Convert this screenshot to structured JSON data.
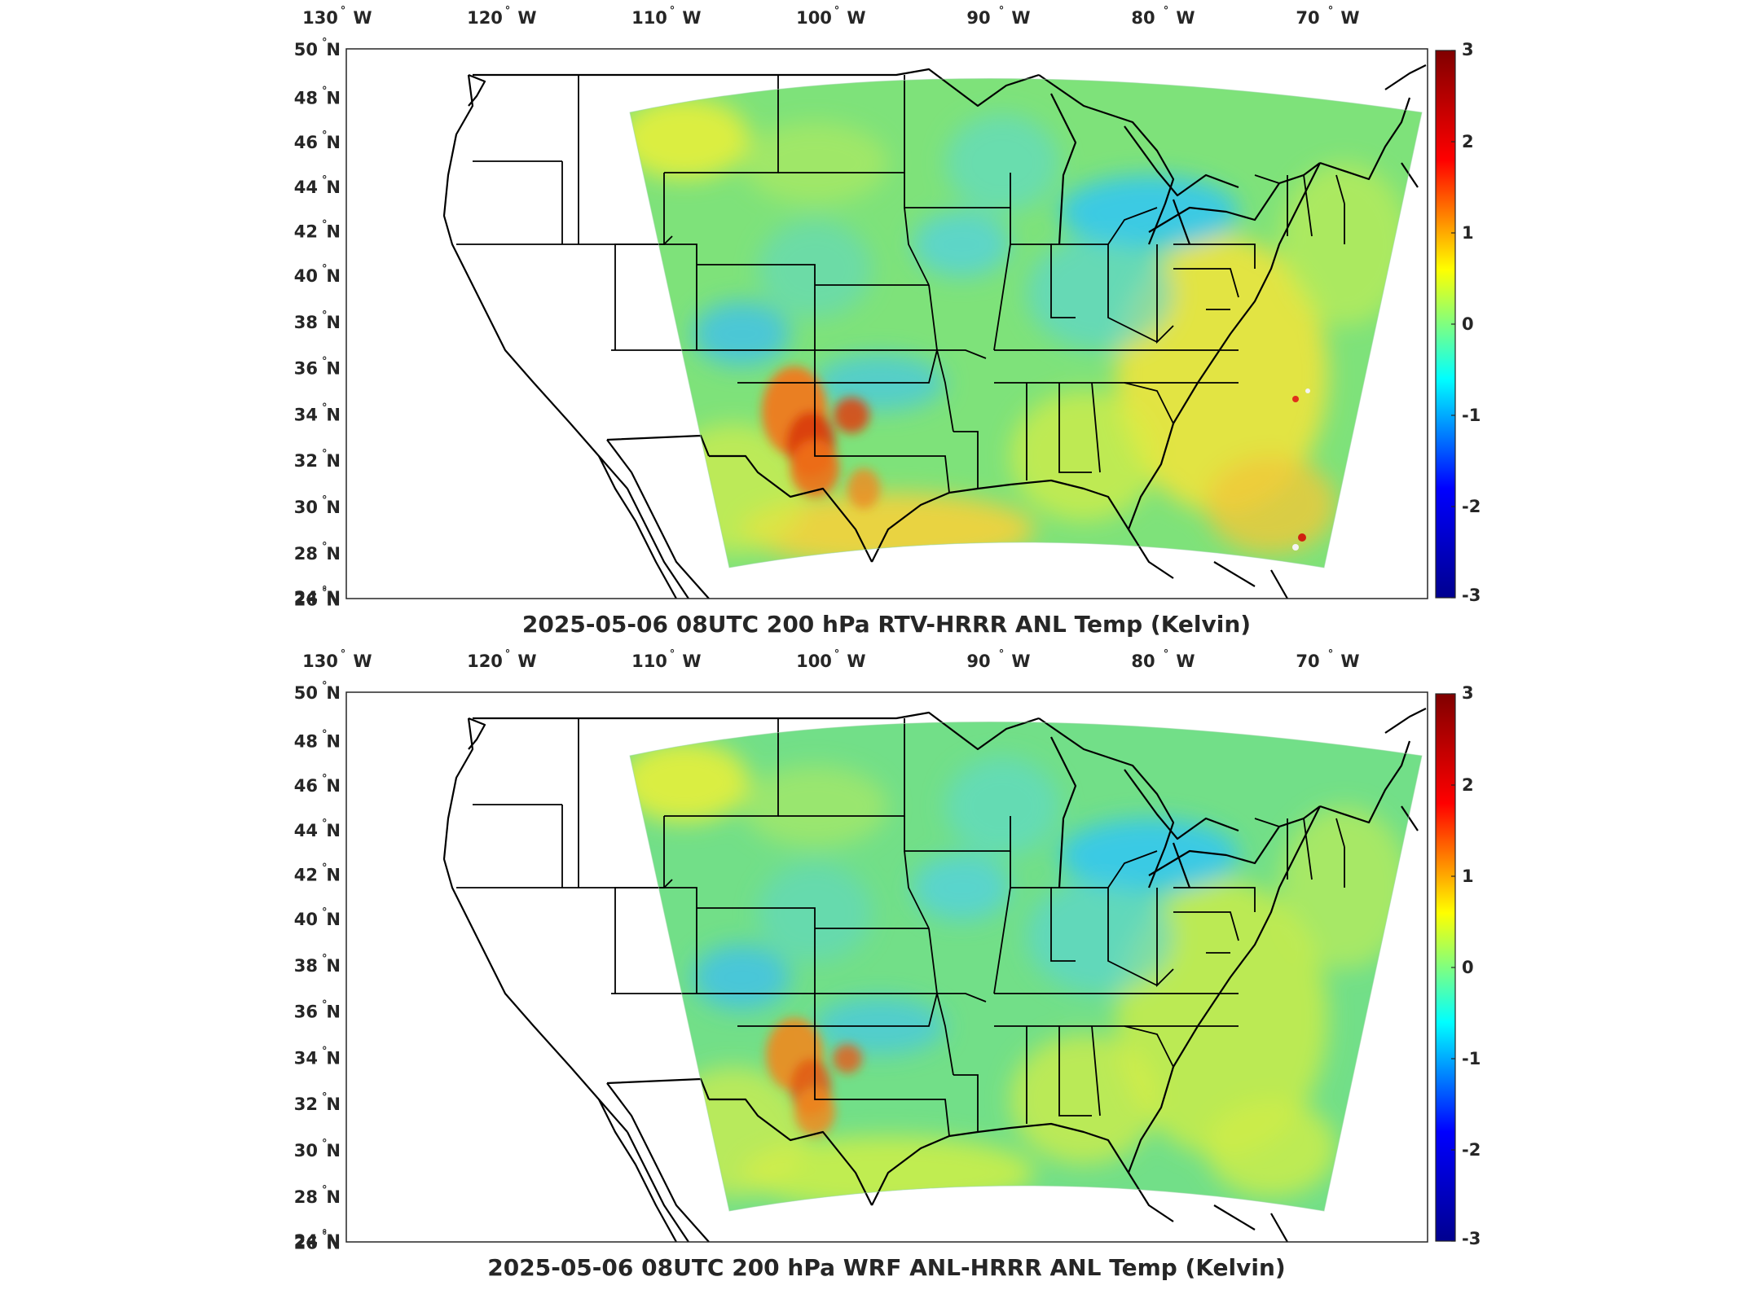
{
  "panels": [
    {
      "id": "top",
      "title": "2025-05-06 08UTC 200 hPa RTV-HRRR ANL Temp (Kelvin)",
      "hotspots": "strong"
    },
    {
      "id": "bottom",
      "title": "2025-05-06 08UTC 200 hPa WRF ANL-HRRR ANL Temp (Kelvin)",
      "hotspots": "mild"
    }
  ],
  "map": {
    "lon_labels": [
      "130",
      "120",
      "110",
      "100",
      "90",
      "80",
      "70"
    ],
    "lon_suffix": "W",
    "lat_labels": [
      "50",
      "48",
      "46",
      "44",
      "42",
      "40",
      "38",
      "36",
      "34",
      "32",
      "30",
      "28",
      "26",
      "24"
    ],
    "lat_suffix": "N",
    "degree_symbol": "°"
  },
  "colorbar": {
    "ticks": [
      "3",
      "2",
      "1",
      "0",
      "-1",
      "-2",
      "-3"
    ],
    "range": [
      -3,
      3
    ],
    "colormap": "jet",
    "colors": [
      "#00008f",
      "#0000ff",
      "#00ffff",
      "#ffff00",
      "#ff0000",
      "#800000"
    ]
  }
}
